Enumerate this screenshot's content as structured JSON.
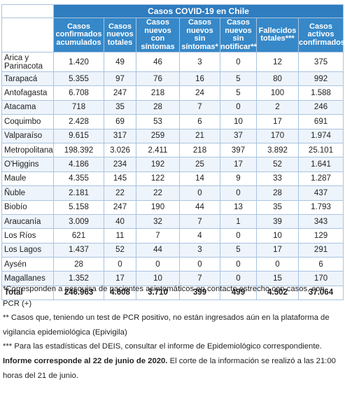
{
  "table": {
    "title": "Casos COVID-19 en Chile",
    "headers": [
      "Casos confirmados acumulados",
      "Casos nuevos totales",
      "Casos nuevos con síntomas",
      "Casos nuevos sin síntomas*",
      "Casos nuevos sin notificar**",
      "Fallecidos totales***",
      "Casos activos confirmados"
    ],
    "rows": [
      {
        "region": "Arica y Parinacota",
        "values": [
          "1.420",
          "49",
          "46",
          "3",
          "0",
          "12",
          "375"
        ]
      },
      {
        "region": "Tarapacá",
        "values": [
          "5.355",
          "97",
          "76",
          "16",
          "5",
          "80",
          "992"
        ]
      },
      {
        "region": "Antofagasta",
        "values": [
          "6.708",
          "247",
          "218",
          "24",
          "5",
          "100",
          "1.588"
        ]
      },
      {
        "region": "Atacama",
        "values": [
          "718",
          "35",
          "28",
          "7",
          "0",
          "2",
          "246"
        ]
      },
      {
        "region": "Coquimbo",
        "values": [
          "2.428",
          "69",
          "53",
          "6",
          "10",
          "17",
          "691"
        ]
      },
      {
        "region": "Valparaíso",
        "values": [
          "9.615",
          "317",
          "259",
          "21",
          "37",
          "170",
          "1.974"
        ]
      },
      {
        "region": "Metropolitana",
        "values": [
          "198.392",
          "3.026",
          "2.411",
          "218",
          "397",
          "3.892",
          "25.101"
        ]
      },
      {
        "region": "O'Higgins",
        "values": [
          "4.186",
          "234",
          "192",
          "25",
          "17",
          "52",
          "1.641"
        ]
      },
      {
        "region": "Maule",
        "values": [
          "4.355",
          "145",
          "122",
          "14",
          "9",
          "33",
          "1.287"
        ]
      },
      {
        "region": "Ñuble",
        "values": [
          "2.181",
          "22",
          "22",
          "0",
          "0",
          "28",
          "437"
        ]
      },
      {
        "region": "Biobío",
        "values": [
          "5.158",
          "247",
          "190",
          "44",
          "13",
          "35",
          "1.793"
        ]
      },
      {
        "region": "Araucanía",
        "values": [
          "3.009",
          "40",
          "32",
          "7",
          "1",
          "39",
          "343"
        ]
      },
      {
        "region": "Los Ríos",
        "values": [
          "621",
          "11",
          "7",
          "4",
          "0",
          "10",
          "129"
        ]
      },
      {
        "region": "Los Lagos",
        "values": [
          "1.437",
          "52",
          "44",
          "3",
          "5",
          "17",
          "291"
        ]
      },
      {
        "region": "Aysén",
        "values": [
          "28",
          "0",
          "0",
          "0",
          "0",
          "0",
          "6"
        ]
      },
      {
        "region": "Magallanes",
        "values": [
          "1.352",
          "17",
          "10",
          "7",
          "0",
          "15",
          "170"
        ]
      }
    ],
    "total": {
      "label": "Total",
      "values": [
        "246.963",
        "4.608",
        "3.710",
        "399",
        "499",
        "4.502",
        "37.064"
      ]
    }
  },
  "notes": {
    "n1": "*Corresponden a pesquisa de pacientes asintomáticos en contacto estrecho con casos, con PCR (+)",
    "n2": "** Casos que, teniendo un test de PCR positivo, no están ingresados aún en la plataforma de vigilancia epidemiológica (Epivigila)",
    "n3": "*** Para las estadísticas del DEIS, consultar el informe de Epidemiológico correspondiente.",
    "n4_bold": "Informe corresponde al 22 de junio de 2020.",
    "n4_rest": " El corte de la información se realizó a las 21:00 horas del 21 de junio."
  }
}
